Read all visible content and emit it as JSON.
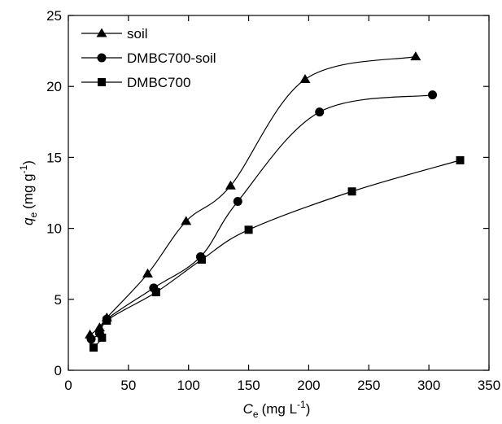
{
  "chart_data": {
    "type": "scatter",
    "xlabel": {
      "symbol": "C",
      "subscript": "e",
      "unit": "(mg L",
      "superscript": "-1",
      "close": ")"
    },
    "ylabel": {
      "symbol": "q",
      "subscript": "e",
      "unit": "(mg g",
      "superscript": "-1",
      "close": ")"
    },
    "xlim": [
      0,
      350
    ],
    "xticks": [
      0,
      50,
      100,
      150,
      200,
      250,
      300,
      350
    ],
    "ylim": [
      0,
      25
    ],
    "yticks": [
      0,
      5,
      10,
      15,
      20,
      25
    ],
    "legend": "upper left",
    "series": [
      {
        "name": "soil",
        "color": "#000000",
        "marker": "triangle",
        "x": [
          18,
          26,
          32,
          66,
          98,
          135,
          197,
          289
        ],
        "values": [
          2.5,
          3.0,
          3.7,
          6.8,
          10.5,
          13.0,
          20.5,
          22.1
        ]
      },
      {
        "name": "DMBC700-soil",
        "color": "#000000",
        "marker": "circle",
        "x": [
          19,
          26,
          32,
          71,
          110,
          141,
          209,
          303
        ],
        "values": [
          2.2,
          2.6,
          3.6,
          5.8,
          8.0,
          11.9,
          18.2,
          19.4
        ]
      },
      {
        "name": "DMBC700",
        "color": "#000000",
        "marker": "square",
        "x": [
          21,
          28,
          32,
          73,
          111,
          150,
          236,
          326
        ],
        "values": [
          1.6,
          2.3,
          3.5,
          5.5,
          7.8,
          9.9,
          12.6,
          14.8
        ]
      }
    ]
  }
}
